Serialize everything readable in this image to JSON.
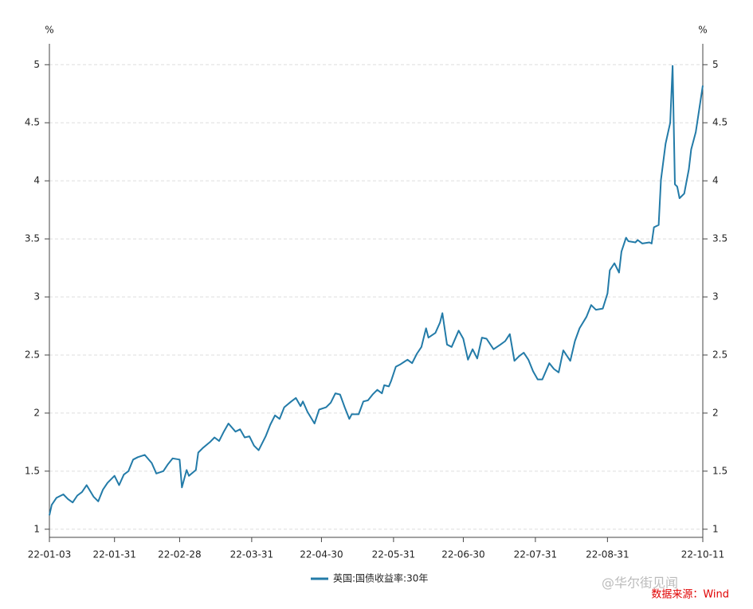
{
  "chart_data": {
    "type": "line",
    "y_unit": "%",
    "x": [
      "22-01-03",
      "22-01-04",
      "22-01-06",
      "22-01-09",
      "22-01-11",
      "22-01-13",
      "22-01-15",
      "22-01-17",
      "22-01-19",
      "22-01-22",
      "22-01-24",
      "22-01-26",
      "22-01-28",
      "22-01-31",
      "22-02-02",
      "22-02-04",
      "22-02-06",
      "22-02-08",
      "22-02-10",
      "22-02-13",
      "22-02-16",
      "22-02-18",
      "22-02-21",
      "22-02-23",
      "22-02-25",
      "22-02-28",
      "22-03-01",
      "22-03-03",
      "22-03-04",
      "22-03-07",
      "22-03-08",
      "22-03-10",
      "22-03-13",
      "22-03-15",
      "22-03-17",
      "22-03-19",
      "22-03-21",
      "22-03-24",
      "22-03-26",
      "22-03-28",
      "22-03-30",
      "22-04-01",
      "22-04-03",
      "22-04-06",
      "22-04-08",
      "22-04-10",
      "22-04-12",
      "22-04-14",
      "22-04-17",
      "22-04-19",
      "22-04-21",
      "22-04-22",
      "22-04-24",
      "22-04-27",
      "22-04-29",
      "22-05-02",
      "22-05-04",
      "22-05-06",
      "22-05-08",
      "22-05-10",
      "22-05-12",
      "22-05-13",
      "22-05-16",
      "22-05-18",
      "22-05-20",
      "22-05-22",
      "22-05-24",
      "22-05-26",
      "22-05-27",
      "22-05-29",
      "22-05-30",
      "22-06-01",
      "22-06-03",
      "22-06-06",
      "22-06-08",
      "22-06-10",
      "22-06-12",
      "22-06-14",
      "22-06-15",
      "22-06-18",
      "22-06-20",
      "22-06-21",
      "22-06-23",
      "22-06-25",
      "22-06-28",
      "22-06-30",
      "22-07-02",
      "22-07-04",
      "22-07-06",
      "22-07-08",
      "22-07-10",
      "22-07-13",
      "22-07-16",
      "22-07-18",
      "22-07-20",
      "22-07-22",
      "22-07-24",
      "22-07-26",
      "22-07-28",
      "22-07-30",
      "22-08-01",
      "22-08-03",
      "22-08-06",
      "22-08-08",
      "22-08-10",
      "22-08-12",
      "22-08-15",
      "22-08-17",
      "22-08-19",
      "22-08-22",
      "22-08-24",
      "22-08-26",
      "22-08-29",
      "22-08-31",
      "22-09-01",
      "22-09-03",
      "22-09-05",
      "22-09-06",
      "22-09-08",
      "22-09-09",
      "22-09-12",
      "22-09-13",
      "22-09-15",
      "22-09-18",
      "22-09-19",
      "22-09-20",
      "22-09-22",
      "22-09-23",
      "22-09-25",
      "22-09-27",
      "22-09-28",
      "22-09-29",
      "22-09-30",
      "22-10-01",
      "22-10-03",
      "22-10-05",
      "22-10-06",
      "22-10-08",
      "22-10-11"
    ],
    "series": [
      {
        "name": "英国:国债收益率:30年",
        "color": "#237ba8",
        "values": [
          1.12,
          1.21,
          1.27,
          1.3,
          1.26,
          1.23,
          1.29,
          1.32,
          1.38,
          1.28,
          1.24,
          1.34,
          1.4,
          1.46,
          1.38,
          1.47,
          1.5,
          1.6,
          1.62,
          1.64,
          1.57,
          1.48,
          1.5,
          1.56,
          1.61,
          1.6,
          1.36,
          1.51,
          1.46,
          1.51,
          1.66,
          1.7,
          1.75,
          1.79,
          1.76,
          1.84,
          1.91,
          1.84,
          1.86,
          1.79,
          1.8,
          1.72,
          1.68,
          1.8,
          1.9,
          1.98,
          1.95,
          2.05,
          2.1,
          2.13,
          2.06,
          2.1,
          2.01,
          1.91,
          2.03,
          2.05,
          2.09,
          2.17,
          2.16,
          2.05,
          1.95,
          1.99,
          1.99,
          2.1,
          2.11,
          2.16,
          2.2,
          2.17,
          2.24,
          2.23,
          2.28,
          2.4,
          2.42,
          2.46,
          2.43,
          2.51,
          2.57,
          2.73,
          2.65,
          2.69,
          2.78,
          2.86,
          2.59,
          2.57,
          2.71,
          2.64,
          2.46,
          2.55,
          2.47,
          2.65,
          2.64,
          2.55,
          2.59,
          2.62,
          2.68,
          2.45,
          2.49,
          2.52,
          2.46,
          2.36,
          2.29,
          2.29,
          2.43,
          2.38,
          2.35,
          2.54,
          2.45,
          2.62,
          2.73,
          2.83,
          2.93,
          2.89,
          2.9,
          3.03,
          3.23,
          3.29,
          3.21,
          3.39,
          3.51,
          3.48,
          3.47,
          3.49,
          3.46,
          3.47,
          3.46,
          3.6,
          3.62,
          4.01,
          4.32,
          4.5,
          4.99,
          3.97,
          3.95,
          3.85,
          3.89,
          4.1,
          4.27,
          4.42,
          4.82
        ]
      }
    ],
    "xlim": [
      "22-01-03",
      "22-10-11"
    ],
    "xticks": [
      "22-01-03",
      "22-01-31",
      "22-02-28",
      "22-03-31",
      "22-04-30",
      "22-05-31",
      "22-06-30",
      "22-07-31",
      "22-08-31",
      "22-10-11"
    ],
    "ylim": [
      0.93,
      5.18
    ],
    "yticks": [
      1,
      1.5,
      2,
      2.5,
      3,
      3.5,
      4,
      4.5,
      5
    ],
    "grid": true,
    "watermark": "@华尔街见闻",
    "source": "数据来源：Wind"
  }
}
